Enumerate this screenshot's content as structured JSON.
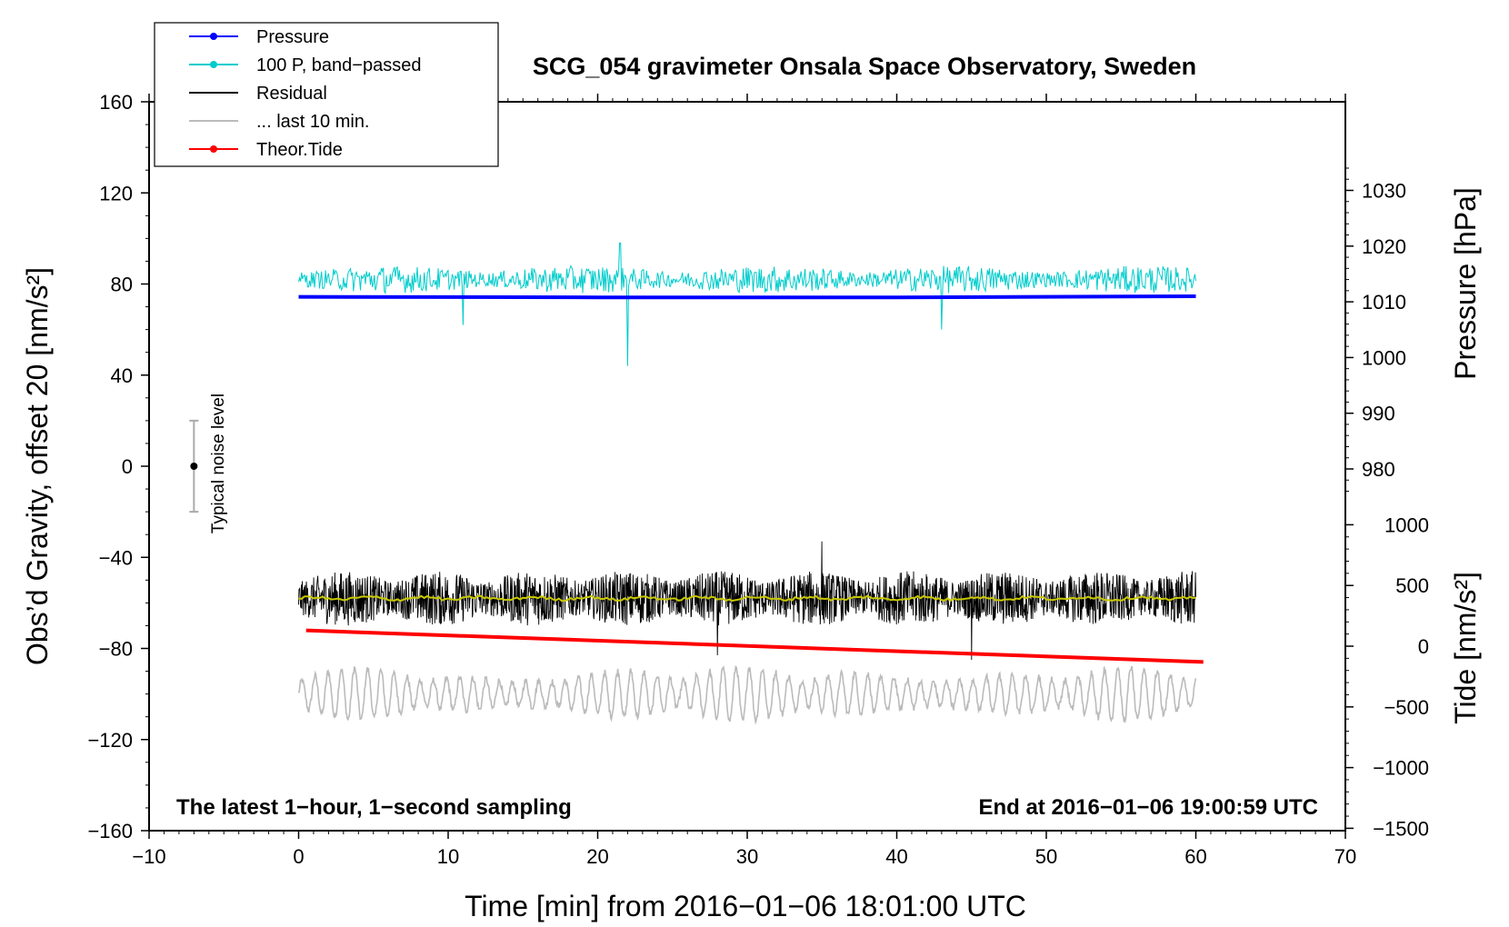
{
  "chart_data": {
    "type": "line",
    "title": "SCG_054 gravimeter Onsala Space Observatory, Sweden",
    "xlabel": "Time [min] from 2016−01−06 18:01:00 UTC",
    "ylabel_left": "Obs’d Gravity, offset 20 [nm/s²]",
    "ylabel_right_pressure": "Pressure [hPa]",
    "ylabel_right_tide": "Tide [nm/s²]",
    "xlim": [
      -10,
      70
    ],
    "ylim": [
      -160,
      160
    ],
    "pressure_ylim": [
      975,
      1035
    ],
    "tide_ylim": [
      -1500,
      1500
    ],
    "x_ticks": [
      -10,
      0,
      10,
      20,
      30,
      40,
      50,
      60,
      70
    ],
    "x_tick_labels": [
      "−10",
      "0",
      "10",
      "20",
      "30",
      "40",
      "50",
      "60",
      "70"
    ],
    "y_ticks": [
      -160,
      -120,
      -80,
      -40,
      0,
      40,
      80,
      120,
      160
    ],
    "y_tick_labels": [
      "−160",
      "−120",
      "−80",
      "−40",
      "0",
      "40",
      "80",
      "120",
      "160"
    ],
    "pressure_ticks": [
      980,
      990,
      1000,
      1010,
      1020,
      1030
    ],
    "pressure_tick_labels": [
      "980",
      "990",
      "1000",
      "1010",
      "1020",
      "1030"
    ],
    "tide_ticks": [
      -1500,
      -1000,
      -500,
      0,
      500,
      1000
    ],
    "tide_tick_labels": [
      "−1500",
      "−1000",
      "−500",
      "0",
      "500",
      "1000"
    ],
    "annotation_left": "The latest 1−hour, 1−second sampling",
    "annotation_right": "End at 2016−01−06 19:00:59 UTC",
    "noise_bar_label": "Typical noise level",
    "noise_bar": {
      "x": -7,
      "y": 0,
      "low": -20,
      "high": 20
    },
    "legend": {
      "placement": "top-left",
      "entries": [
        {
          "label": "Pressure",
          "color": "#0000ff",
          "marker": true
        },
        {
          "label": "100 P, band−passed",
          "color": "#00cccc",
          "marker": true
        },
        {
          "label": "Residual",
          "color": "#000000",
          "marker": false
        },
        {
          "label": "... last 10 min.",
          "color": "#bbbbbb",
          "marker": false
        },
        {
          "label": "Theor.Tide",
          "color": "#ff0000",
          "marker": true
        }
      ]
    },
    "series": [
      {
        "name": "Pressure",
        "axis": "pressure",
        "color": "#0000ff",
        "x": [
          0,
          20,
          40,
          60
        ],
        "y": [
          1010.9,
          1010.8,
          1010.8,
          1011.0
        ]
      },
      {
        "name": "100 P, band−passed",
        "axis": "left",
        "color": "#00cccc",
        "x": [
          0,
          60
        ],
        "baseline": 82,
        "amplitude": 5,
        "spikes": [
          {
            "x": 11,
            "y": 99
          },
          {
            "x": 11,
            "y": 62
          },
          {
            "x": 21.5,
            "y": 98
          },
          {
            "x": 22,
            "y": 44
          },
          {
            "x": 43,
            "y": 60
          }
        ]
      },
      {
        "name": "Residual",
        "axis": "left",
        "color": "#000000",
        "x": [
          0,
          60
        ],
        "baseline": -58,
        "amplitude": 10,
        "spikes": [
          {
            "x": 28,
            "y": -33
          },
          {
            "x": 28,
            "y": -83
          },
          {
            "x": 35,
            "y": -33
          },
          {
            "x": 45,
            "y": -34
          },
          {
            "x": 45,
            "y": -85
          }
        ]
      },
      {
        "name": "Residual smoothed",
        "axis": "left",
        "color": "#c8c800",
        "x": [
          0,
          60
        ],
        "baseline": -58,
        "amplitude": 1
      },
      {
        "name": "... last 10 min.",
        "axis": "left",
        "color": "#bbbbbb",
        "x": [
          0,
          60
        ],
        "baseline": -100,
        "amplitude": 12
      },
      {
        "name": "Theor.Tide",
        "axis": "tide",
        "color": "#ff0000",
        "x": [
          0.5,
          60.5
        ],
        "y": [
          130,
          -130
        ]
      }
    ]
  }
}
